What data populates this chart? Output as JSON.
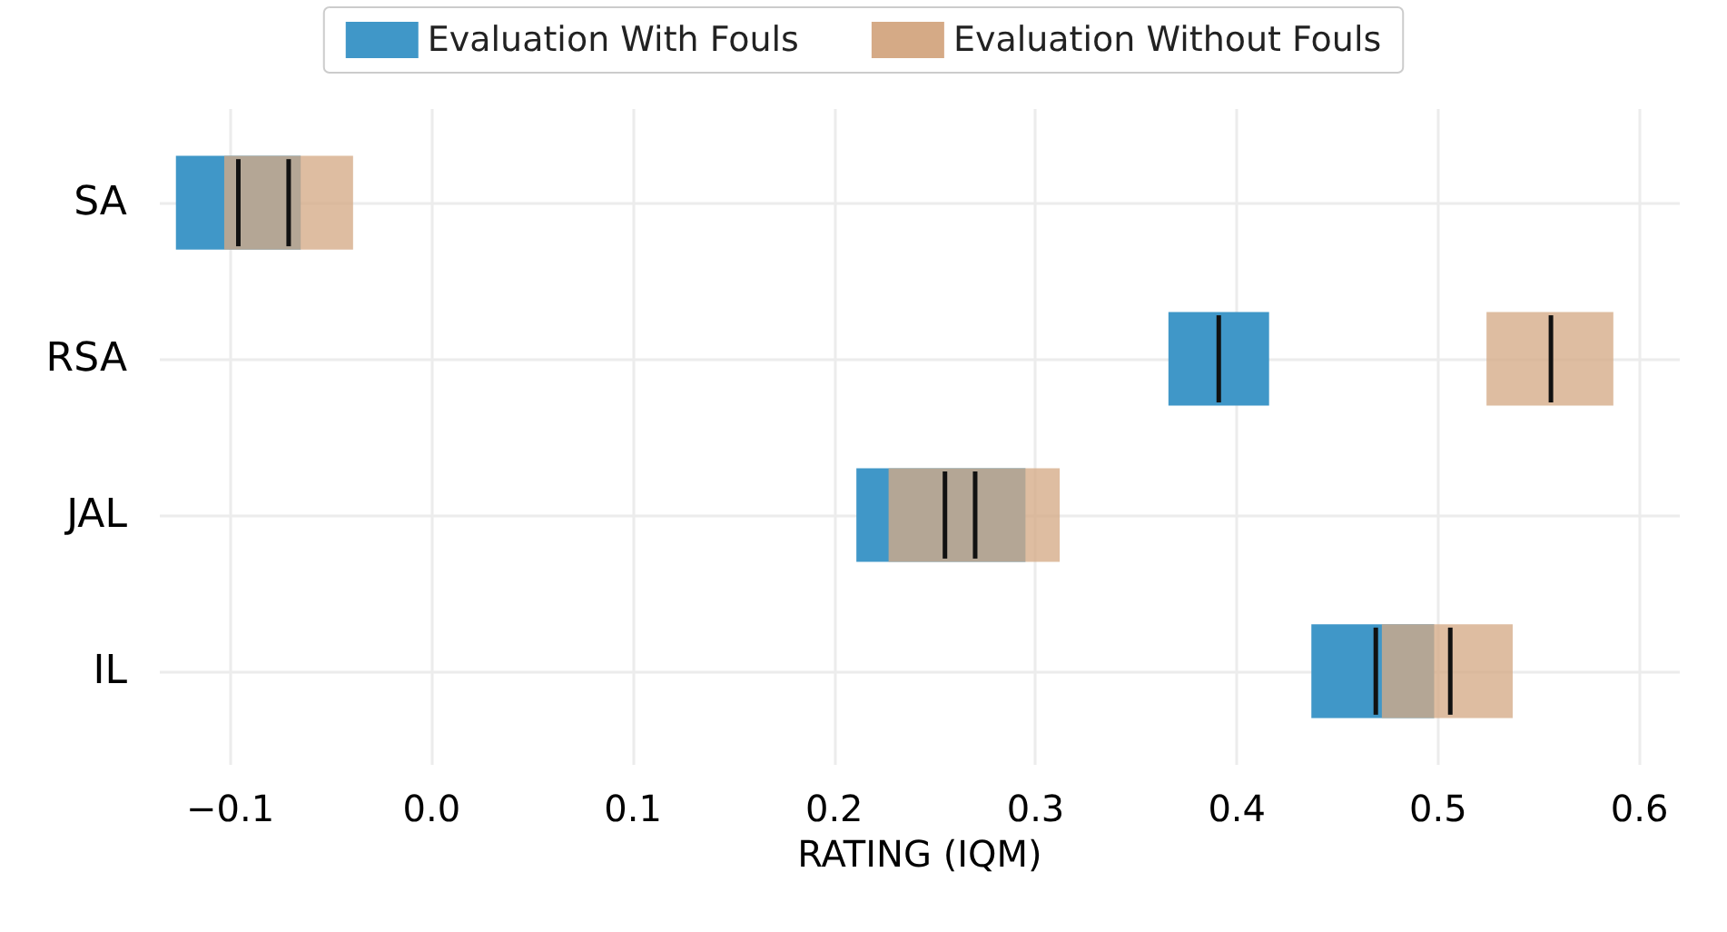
{
  "chart_data": {
    "type": "box",
    "orientation": "horizontal",
    "xlabel": "RATING (IQM)",
    "categories": [
      "SA",
      "RSA",
      "JAL",
      "IL"
    ],
    "series": [
      {
        "name": "Evaluation With Fouls",
        "color": "#4097c8",
        "boxes": [
          {
            "low": -0.127,
            "q1": -0.127,
            "median": -0.096,
            "q3": -0.065,
            "high": -0.065
          },
          {
            "low": 0.366,
            "q1": 0.366,
            "median": 0.391,
            "q3": 0.416,
            "high": 0.416
          },
          {
            "low": 0.211,
            "q1": 0.211,
            "median": 0.255,
            "q3": 0.295,
            "high": 0.295
          },
          {
            "low": 0.437,
            "q1": 0.437,
            "median": 0.469,
            "q3": 0.498,
            "high": 0.498
          }
        ]
      },
      {
        "name": "Evaluation Without Fouls",
        "color": "#d5aa86",
        "boxes": [
          {
            "low": -0.103,
            "q1": -0.103,
            "median": -0.071,
            "q3": -0.039,
            "high": -0.039
          },
          {
            "low": 0.524,
            "q1": 0.524,
            "median": 0.556,
            "q3": 0.587,
            "high": 0.587
          },
          {
            "low": 0.227,
            "q1": 0.227,
            "median": 0.27,
            "q3": 0.312,
            "high": 0.312
          },
          {
            "low": 0.472,
            "q1": 0.472,
            "median": 0.506,
            "q3": 0.537,
            "high": 0.537
          }
        ]
      }
    ],
    "xlim": [
      -0.135,
      0.62
    ],
    "xticks": [
      {
        "value": -0.1,
        "label": "−0.1"
      },
      {
        "value": 0,
        "label": "0.0"
      },
      {
        "value": 0.1,
        "label": "0.1"
      },
      {
        "value": 0.2,
        "label": "0.2"
      },
      {
        "value": 0.3,
        "label": "0.3"
      },
      {
        "value": 0.4,
        "label": "0.4"
      },
      {
        "value": 0.5,
        "label": "0.5"
      },
      {
        "value": 0.6,
        "label": "0.6"
      }
    ],
    "grid": true,
    "legend": "top"
  }
}
